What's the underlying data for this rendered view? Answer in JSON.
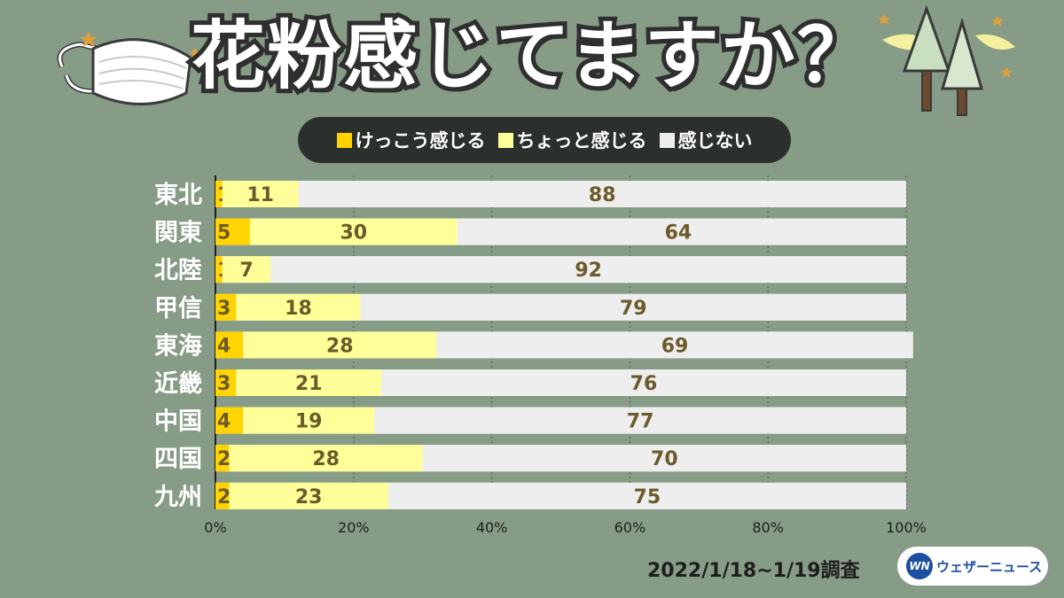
{
  "title": "花粉感じてますか？",
  "legend": {
    "items": [
      {
        "label": "けっこう感じる",
        "color": "#ffd400"
      },
      {
        "label": "ちょっと感じる",
        "color": "#ffff99"
      },
      {
        "label": "感じない",
        "color": "#eeeeee"
      }
    ]
  },
  "footer": {
    "date": "2022/1/18~1/19調査",
    "brand_mark": "WN",
    "brand_name": "ウェザーニュース"
  },
  "chart_data": {
    "type": "bar",
    "orientation": "horizontal",
    "stacked": true,
    "categories": [
      "東北",
      "関東",
      "北陸",
      "甲信",
      "東海",
      "近畿",
      "中国",
      "四国",
      "九州"
    ],
    "series": [
      {
        "name": "けっこう感じる",
        "color": "#ffd400",
        "values": [
          1,
          5,
          1,
          3,
          4,
          3,
          4,
          2,
          2
        ]
      },
      {
        "name": "ちょっと感じる",
        "color": "#ffff99",
        "values": [
          11,
          30,
          7,
          18,
          28,
          21,
          19,
          28,
          23
        ]
      },
      {
        "name": "感じない",
        "color": "#eeeeee",
        "values": [
          88,
          64,
          92,
          79,
          69,
          76,
          77,
          70,
          75
        ]
      }
    ],
    "xlim": [
      0,
      100
    ],
    "xticks": [
      "0%",
      "20%",
      "40%",
      "60%",
      "80%",
      "100%"
    ],
    "grid": true,
    "legend_position": "top"
  }
}
